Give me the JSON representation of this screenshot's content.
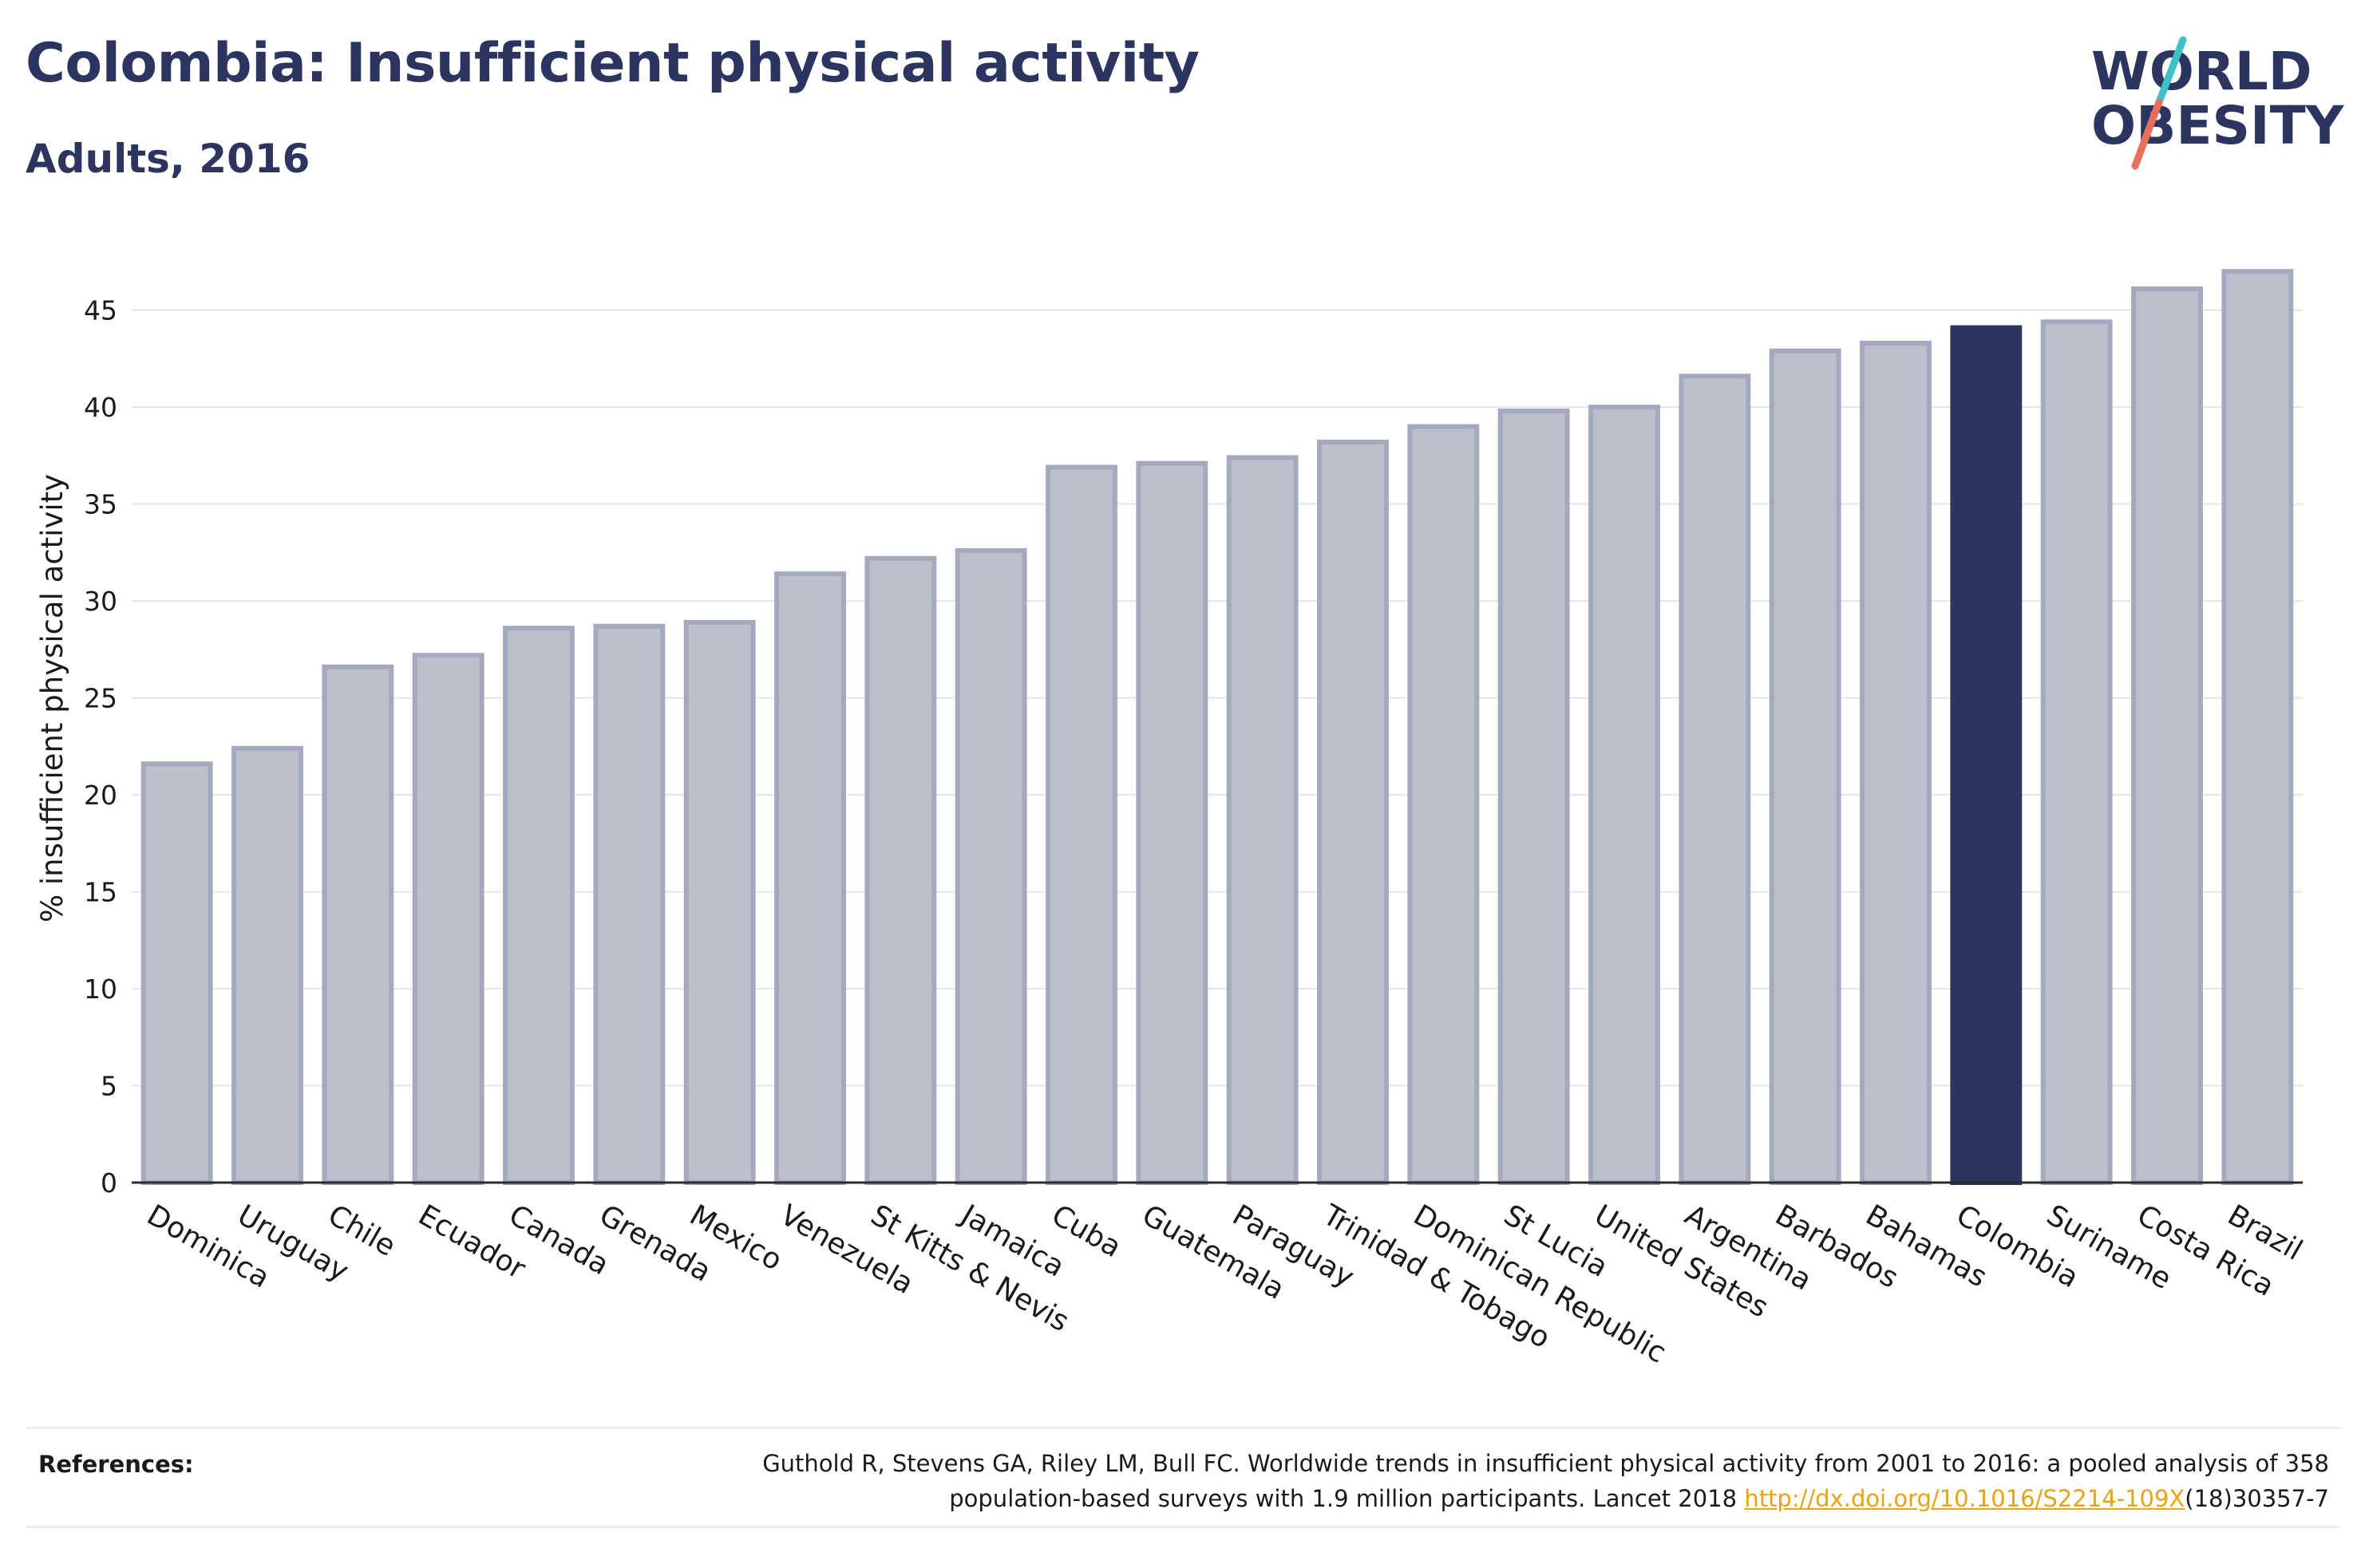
{
  "header": {
    "title": "Colombia: Insufficient physical activity",
    "subtitle": "Adults, 2016"
  },
  "logo": {
    "line1": "WORLD",
    "line2": "OBESITY",
    "slash_colors": [
      "#3fc1c9",
      "#e8705a"
    ],
    "text_color": "#2b3560"
  },
  "chart_data": {
    "type": "bar",
    "title": "Colombia: Insufficient physical activity",
    "subtitle": "Adults, 2016",
    "xlabel": "",
    "ylabel": "% insufficient physical activity",
    "ylim": [
      0,
      47.5
    ],
    "yticks": [
      0,
      5,
      10,
      15,
      20,
      25,
      30,
      35,
      40,
      45
    ],
    "grid": true,
    "highlight": "Colombia",
    "colors": {
      "default": "#bcbfcc",
      "default_edge": "#a5a9bd",
      "highlight": "#2b3560"
    },
    "categories": [
      "Dominica",
      "Uruguay",
      "Chile",
      "Ecuador",
      "Canada",
      "Grenada",
      "Mexico",
      "Venezuela",
      "St Kitts & Nevis",
      "Jamaica",
      "Cuba",
      "Guatemala",
      "Paraguay",
      "Trinidad & Tobago",
      "Dominican Republic",
      "St Lucia",
      "United States",
      "Argentina",
      "Barbados",
      "Bahamas",
      "Colombia",
      "Suriname",
      "Costa Rica",
      "Brazil"
    ],
    "values": [
      21.6,
      22.4,
      26.6,
      27.2,
      28.6,
      28.7,
      28.9,
      31.4,
      32.2,
      32.6,
      36.9,
      37.1,
      37.4,
      38.2,
      39.0,
      39.8,
      40.0,
      41.6,
      42.9,
      43.3,
      44.1,
      44.4,
      46.1,
      47.0
    ]
  },
  "references": {
    "heading": "References:",
    "text_line1": "Guthold R, Stevens GA, Riley LM, Bull FC. Worldwide trends in insufficient physical activity from 2001 to 2016: a pooled analysis of 358",
    "text_line2_pre": "population-based surveys with 1.9 million participants. Lancet 2018 ",
    "link": "http://dx.doi.org/10.1016/S2214-109X",
    "text_line2_post": "(18)30357-7"
  }
}
